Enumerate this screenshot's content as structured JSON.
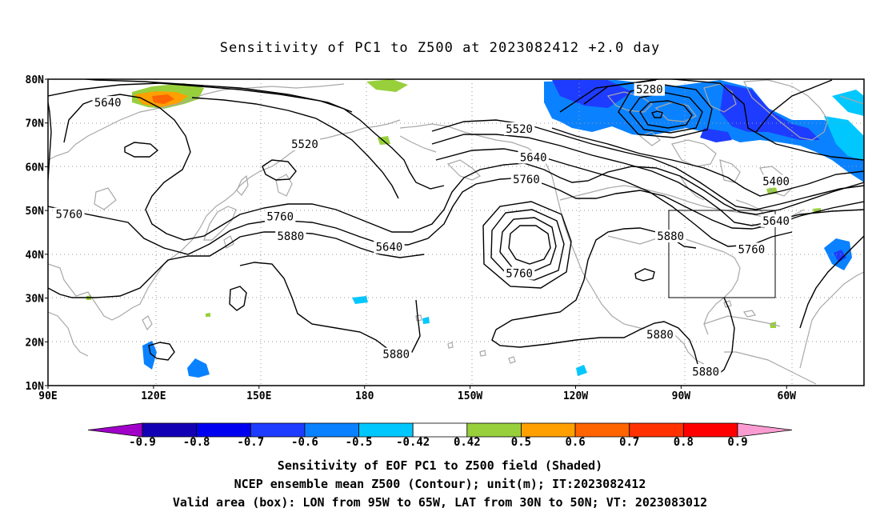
{
  "title": "Sensitivity of PC1 to Z500 at 2023082412 +2.0 day",
  "map": {
    "lat_labels": [
      "80N",
      "70N",
      "60N",
      "50N",
      "40N",
      "30N",
      "20N",
      "10N"
    ],
    "lon_labels": [
      "90E",
      "120E",
      "150E",
      "180",
      "150W",
      "120W",
      "90W",
      "60W"
    ],
    "contour_labels": [
      {
        "text": "5640",
        "lon": 107,
        "lat": 74.5
      },
      {
        "text": "5520",
        "lon": 163,
        "lat": 65
      },
      {
        "text": "5760",
        "lon": 96,
        "lat": 49
      },
      {
        "text": "5760",
        "lon": 156,
        "lat": 48.5
      },
      {
        "text": "5880",
        "lon": 159,
        "lat": 44
      },
      {
        "text": "5640",
        "lon": 187,
        "lat": 41.5
      },
      {
        "text": "5760",
        "lon": 224,
        "lat": 35.5
      },
      {
        "text": "5880",
        "lon": 189,
        "lat": 17
      },
      {
        "text": "5520",
        "lon": 224,
        "lat": 68.5
      },
      {
        "text": "5640",
        "lon": 228,
        "lat": 62
      },
      {
        "text": "5760",
        "lon": 226,
        "lat": 57
      },
      {
        "text": "5880",
        "lon": 267,
        "lat": 44
      },
      {
        "text": "5280",
        "lon": 261,
        "lat": 77.5
      },
      {
        "text": "5400",
        "lon": 297,
        "lat": 56.5
      },
      {
        "text": "5640",
        "lon": 297,
        "lat": 47.5
      },
      {
        "text": "5760",
        "lon": 290,
        "lat": 41
      },
      {
        "text": "5880",
        "lon": 264,
        "lat": 21.5
      },
      {
        "text": "5880",
        "lon": 277,
        "lat": 13
      }
    ],
    "valid_box": {
      "lon_west": 265,
      "lon_east": 295,
      "lat_south": 30,
      "lat_north": 50
    }
  },
  "colorbar": {
    "labels": [
      "-0.9",
      "-0.8",
      "-0.7",
      "-0.6",
      "-0.5",
      "-0.42",
      "0.42",
      "0.5",
      "0.6",
      "0.7",
      "0.8",
      "0.9"
    ],
    "colors": [
      "#a000c8",
      "#1400b4",
      "#0000f0",
      "#1e3cff",
      "#0a82ff",
      "#00c8ff",
      "#ffffff",
      "#98d03c",
      "#ffa000",
      "#ff6400",
      "#ff3200",
      "#ff0000",
      "#fa9cd2"
    ]
  },
  "captions": {
    "line1": "Sensitivity of EOF PC1 to Z500 field (Shaded)",
    "line2": "NCEP ensemble mean Z500 (Contour); unit(m); IT:2023082412",
    "line3": "Valid area (box): LON from 95W to 65W, LAT from 30N to 50N; VT: 2023083012"
  }
}
